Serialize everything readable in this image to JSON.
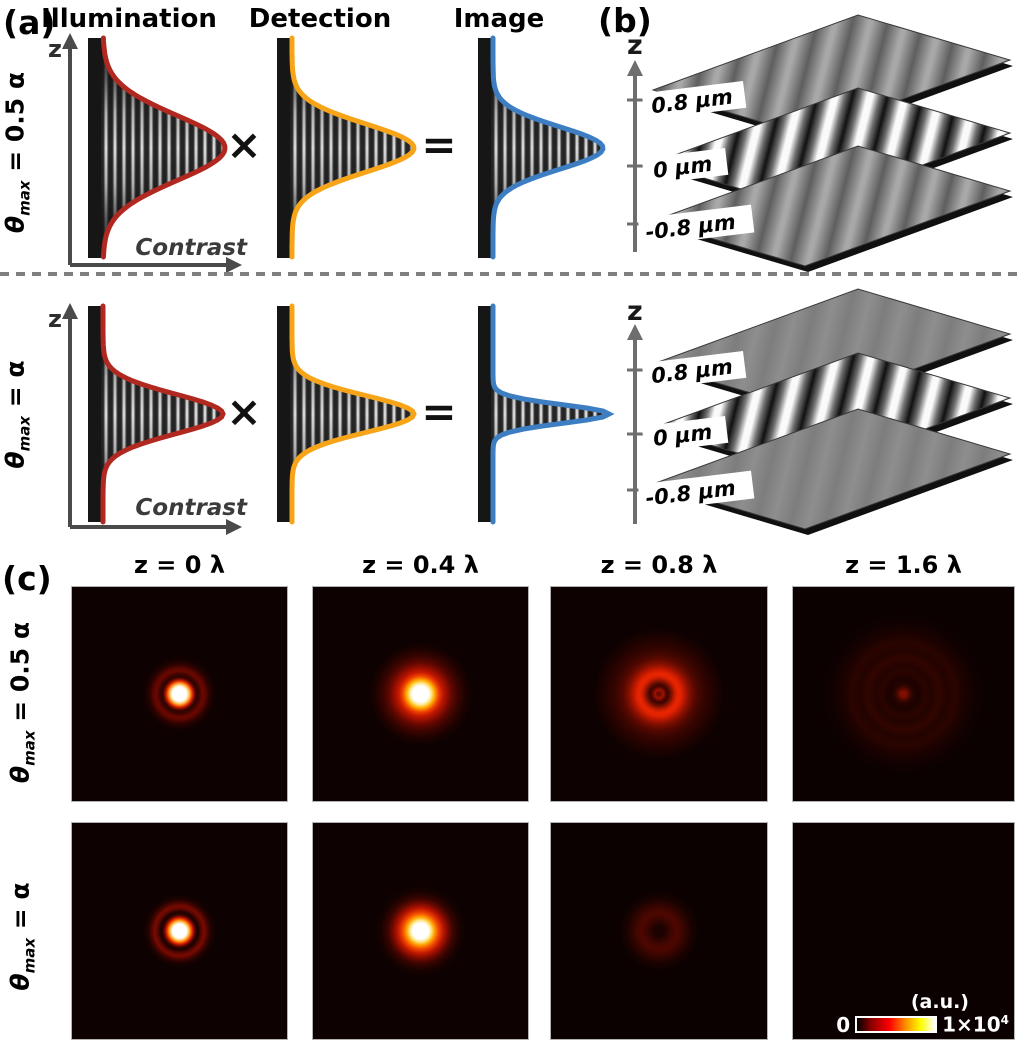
{
  "figure": {
    "panel_a": {
      "label": "(a)",
      "headers": [
        "Illumination",
        "Detection",
        "Image"
      ],
      "z_axis_label": "z",
      "x_axis_label": "Contrast",
      "multiply_sign": "×",
      "equals_sign": "=",
      "row_labels": [
        {
          "symbol": "θ",
          "subscript": "max",
          "rest": " = 0.5 α"
        },
        {
          "symbol": "θ",
          "subscript": "max",
          "rest": " = α"
        }
      ],
      "curve_colors": {
        "illumination": "#b0281f",
        "detection": "#f7a418",
        "image": "#3d7ec2"
      }
    },
    "panel_b": {
      "label": "(b)",
      "z_axis_label": "z",
      "tick_labels": [
        "0.8 μm",
        "0 μm",
        "-0.8 μm"
      ]
    },
    "panel_c": {
      "label": "(c)",
      "col_headers": [
        "z = 0 λ",
        "z = 0.4 λ",
        "z = 0.8 λ",
        "z = 1.6 λ"
      ],
      "row_labels": [
        {
          "symbol": "θ",
          "subscript": "max",
          "rest": " = 0.5 α"
        },
        {
          "symbol": "θ",
          "subscript": "max",
          "rest": " = α"
        }
      ],
      "colorbar": {
        "title": "(a.u.)",
        "min": "0",
        "max_base": "1×10",
        "max_exponent": "4",
        "gradient": [
          "#000000",
          "#8b0000",
          "#ff0000",
          "#ff8c00",
          "#ffff00",
          "#ffffff"
        ]
      }
    }
  }
}
